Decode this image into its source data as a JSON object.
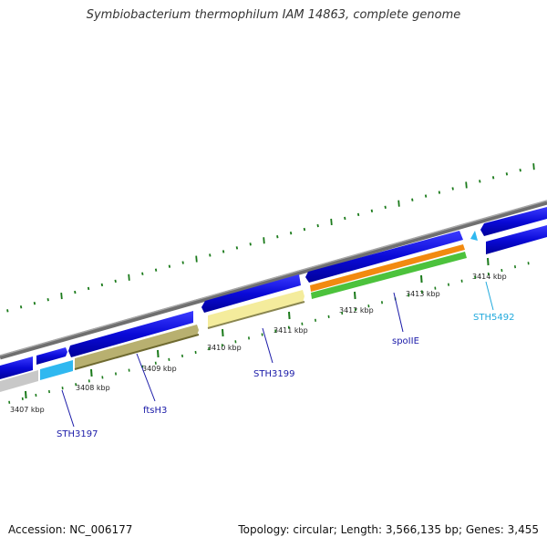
{
  "title": "Symbiobacterium thermophilum IAM 14863, complete genome",
  "accession_text": "Accession: NC_006177",
  "footer_text": "Topology: circular; Length: 3,566,135 bp; Genes: 3,455",
  "colors": {
    "backbone": "#7a7a7a",
    "cds": "#0b0bdc",
    "tick": "#1a7a1a",
    "label_blue": "#1a1aa8",
    "label_cyan": "#22aadd"
  },
  "ticks": [
    {
      "label": "3407 kbp"
    },
    {
      "label": "3408 kbp"
    },
    {
      "label": "3409 kbp"
    },
    {
      "label": "3410 kbp"
    },
    {
      "label": "3411 kbp"
    },
    {
      "label": "3412 kbp"
    },
    {
      "label": "3413 kbp"
    },
    {
      "label": "3414 kbp"
    }
  ],
  "gene_labels": [
    {
      "name": "STH3197",
      "color": "#1a1aa8"
    },
    {
      "name": "ftsH3",
      "color": "#1a1aa8"
    },
    {
      "name": "STH3199",
      "color": "#1a1aa8"
    },
    {
      "name": "spoIIE",
      "color": "#1a1aa8"
    },
    {
      "name": "STH5492",
      "color": "#22aadd"
    }
  ]
}
